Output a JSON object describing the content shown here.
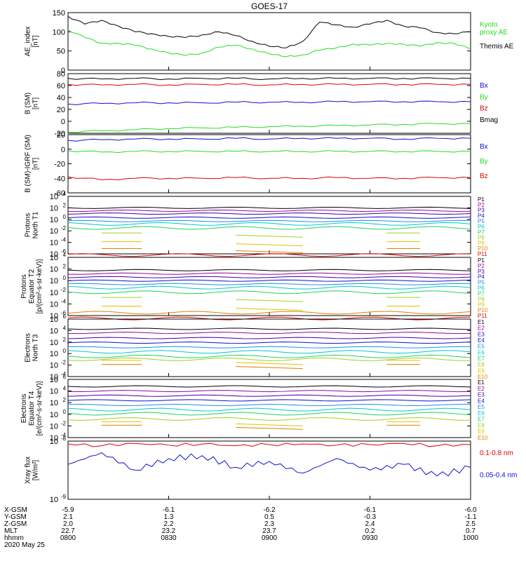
{
  "title": "GOES-17",
  "date_label": "2020 May 25",
  "colors": {
    "black": "#000000",
    "red": "#e00000",
    "green": "#22dd22",
    "blue": "#1010d0",
    "P": [
      "#000000",
      "#a000a0",
      "#4000a0",
      "#1010d0",
      "#2090e0",
      "#00c8c8",
      "#20d060",
      "#a0d020",
      "#e0c000",
      "#e08000",
      "#e00000"
    ],
    "E": [
      "#000000",
      "#a000a0",
      "#4000a0",
      "#1010d0",
      "#2090e0",
      "#00c8c8",
      "#20d060",
      "#a0d020",
      "#e0c000",
      "#e08000",
      "#e00000"
    ]
  },
  "x_rows": {
    "labels": [
      "X-GSM",
      "Y-GSM",
      "Z-GSM",
      "MLT",
      "hhmm"
    ],
    "values": [
      [
        "-5.9",
        "-6.1",
        "-6.2",
        "-6.1",
        "-6.0"
      ],
      [
        "2.1",
        "1.3",
        "0.5",
        "-0.3",
        "-1.1"
      ],
      [
        "2.0",
        "2.2",
        "2.3",
        "2.4",
        "2.5"
      ],
      [
        "22.7",
        "23.2",
        "23.7",
        "0.2",
        "0.7"
      ],
      [
        "0800",
        "0830",
        "0900",
        "0930",
        "1000"
      ]
    ]
  },
  "chart_data": [
    {
      "type": "line",
      "ylabel": "AE_index\n[nT]",
      "ylim": [
        0,
        150
      ],
      "yticks": [
        0,
        50,
        100,
        150
      ],
      "x": [
        0,
        5,
        10,
        15,
        20,
        25,
        30,
        35,
        40,
        45,
        50,
        55,
        60,
        65,
        70,
        75,
        80,
        85,
        90,
        95,
        100,
        105,
        110,
        115,
        120
      ],
      "series": [
        {
          "name": "Kyoto proxy AE",
          "color": "green",
          "values": [
            105,
            85,
            70,
            70,
            65,
            55,
            45,
            38,
            45,
            60,
            65,
            55,
            42,
            35,
            40,
            52,
            58,
            68,
            65,
            70,
            68,
            62,
            72,
            70,
            55
          ]
        },
        {
          "name": "Themis AE",
          "color": "black",
          "values": [
            140,
            120,
            130,
            115,
            100,
            95,
            88,
            85,
            92,
            100,
            90,
            75,
            62,
            58,
            75,
            125,
            118,
            112,
            120,
            130,
            115,
            110,
            98,
            95,
            100
          ]
        }
      ]
    },
    {
      "type": "line",
      "ylabel": "B (SM)\n[nT]",
      "ylim": [
        -20,
        80
      ],
      "yticks": [
        -20,
        0,
        20,
        40,
        60,
        80
      ],
      "x": [
        0,
        10,
        20,
        30,
        40,
        50,
        60,
        70,
        80,
        90,
        100,
        110,
        120
      ],
      "series": [
        {
          "name": "Bx",
          "color": "blue",
          "values": [
            29,
            30,
            31,
            31,
            31,
            32,
            32,
            32,
            33,
            33,
            33,
            33,
            33
          ]
        },
        {
          "name": "By",
          "color": "green",
          "values": [
            -18,
            -16,
            -14,
            -12,
            -11,
            -10,
            -9,
            -8,
            -7,
            -6,
            -5,
            -4,
            -4
          ]
        },
        {
          "name": "Bz",
          "color": "red",
          "values": [
            62,
            61,
            62,
            61,
            62,
            62,
            61,
            62,
            62,
            62,
            62,
            62,
            62
          ]
        },
        {
          "name": "Bmag",
          "color": "black",
          "values": [
            72,
            71,
            72,
            71,
            72,
            72,
            71,
            72,
            72,
            72,
            72,
            72,
            72
          ]
        }
      ]
    },
    {
      "type": "line",
      "ylabel": "B (SM)-IGRF (SM)\n[nT]",
      "ylim": [
        -60,
        20
      ],
      "yticks": [
        -60,
        -40,
        -20,
        0,
        20
      ],
      "x": [
        0,
        10,
        20,
        30,
        40,
        50,
        60,
        70,
        80,
        90,
        100,
        110,
        120
      ],
      "series": [
        {
          "name": "Bx",
          "color": "blue",
          "values": [
            12,
            13,
            14,
            14,
            14,
            15,
            14,
            15,
            15,
            15,
            14,
            15,
            15
          ]
        },
        {
          "name": "By",
          "color": "green",
          "values": [
            -2,
            -4,
            -3,
            -3,
            -3,
            -3,
            -3,
            -3,
            -3,
            -3,
            -3,
            -3,
            -3
          ]
        },
        {
          "name": "Bz",
          "color": "red",
          "values": [
            -38,
            -42,
            -40,
            -40,
            -40,
            -39,
            -40,
            -40,
            -39,
            -40,
            -40,
            -39,
            -39
          ]
        }
      ]
    },
    {
      "type": "line",
      "ylabel": "Protons\nNorth T1",
      "ylim_exp": [
        -6,
        4
      ],
      "yscale": "log",
      "ytick_labels": [
        "10^-6",
        "10^-4",
        "10^-2",
        "10^0",
        "10^2",
        "10^4"
      ],
      "channels": [
        "P1",
        "P2",
        "P3",
        "P4",
        "P5",
        "P6",
        "P7",
        "P8",
        "P9",
        "P10",
        "P11"
      ],
      "levels_exp": [
        2.0,
        1.5,
        1.0,
        0.3,
        -0.3,
        -0.8,
        -1.5,
        -2.5,
        -4.0,
        -5.2,
        -6.2
      ],
      "gaps": {
        "P8": true,
        "P9": true,
        "P10": true
      }
    },
    {
      "type": "line",
      "ylabel": "Protons\nEquator T2\n[p/(cm²-s-sr-keV)]",
      "ylim_exp": [
        -6,
        4
      ],
      "yscale": "log",
      "ytick_labels": [
        "10^-6",
        "10^-4",
        "10^-2",
        "10^0",
        "10^2",
        "10^4"
      ],
      "channels": [
        "P1",
        "P2",
        "P3",
        "P4",
        "P5",
        "P6",
        "P7",
        "P8",
        "P9",
        "P10",
        "P11"
      ],
      "levels_exp": [
        1.8,
        1.2,
        0.6,
        0.0,
        -0.6,
        -1.2,
        -2.0,
        -3.0,
        -4.5,
        -5.5,
        -6.5
      ],
      "gaps": {
        "P8": true,
        "P9": true
      }
    },
    {
      "type": "line",
      "ylabel": "Electrons\nNorth T3",
      "ylim_exp": [
        -4,
        6
      ],
      "yscale": "log",
      "ytick_labels": [
        "10^-4",
        "10^-2",
        "10^0",
        "10^2",
        "10^4",
        "10^6"
      ],
      "channels": [
        "E1",
        "E2",
        "E3",
        "E4",
        "E5",
        "E6",
        "E7",
        "E8",
        "E9",
        "E10"
      ],
      "levels_exp": [
        4.3,
        3.6,
        2.7,
        1.9,
        1.1,
        0.3,
        -0.5,
        -1.0,
        -1.3,
        -2.0
      ],
      "gaps": {
        "E9": true,
        "E10": true
      }
    },
    {
      "type": "line",
      "ylabel": "Electrons\nEquator T4\n[e/(cm²-s-sr-keV)]",
      "ylim_exp": [
        -4,
        6
      ],
      "yscale": "log",
      "ytick_labels": [
        "10^-4",
        "10^-2",
        "10^0",
        "10^2",
        "10^4",
        "10^6"
      ],
      "channels": [
        "E1",
        "E2",
        "E3",
        "E4",
        "E5",
        "E6",
        "E7",
        "E8",
        "E9",
        "E10"
      ],
      "levels_exp": [
        4.8,
        4.0,
        3.2,
        2.4,
        1.6,
        0.8,
        0.1,
        -0.8,
        -1.4,
        -2.0
      ],
      "gaps": {
        "E9": true,
        "E10": true
      }
    },
    {
      "type": "line",
      "ylabel": "Xray flux\n[W/m²]",
      "yscale": "log",
      "ylim_exp": [
        -9,
        -8
      ],
      "ytick_labels": [
        "10^-9",
        "10^-8"
      ],
      "x": [
        0,
        10,
        20,
        30,
        40,
        50,
        60,
        70,
        80,
        90,
        100,
        110,
        120
      ],
      "series": [
        {
          "name": "0.1-0.8 nm",
          "color": "red",
          "values_exp": [
            -8.05,
            -8.08,
            -8.04,
            -8.07,
            -8.05,
            -8.08,
            -8.06,
            -8.05,
            -8.07,
            -8.06,
            -8.04,
            -8.08,
            -8.06
          ]
        },
        {
          "name": "0.05-0.4 nm",
          "color": "blue",
          "values_exp": [
            -8.4,
            -8.2,
            -8.5,
            -8.3,
            -8.25,
            -8.45,
            -8.35,
            -8.55,
            -8.3,
            -8.5,
            -8.4,
            -8.6,
            -8.45
          ]
        }
      ]
    }
  ],
  "legends": [
    [
      {
        "text": "Kyoto\nproxy AE",
        "color": "green"
      },
      {
        "text": "Themis AE",
        "color": "black"
      }
    ],
    [
      {
        "text": "Bx",
        "color": "blue"
      },
      {
        "text": "By",
        "color": "green"
      },
      {
        "text": "Bz",
        "color": "red"
      },
      {
        "text": "Bmag",
        "color": "black"
      }
    ],
    [
      {
        "text": "Bx",
        "color": "blue"
      },
      {
        "text": "By",
        "color": "green"
      },
      {
        "text": "Bz",
        "color": "red"
      }
    ],
    [],
    [],
    [],
    [],
    [
      {
        "text": "0.1-0.8 nm",
        "color": "red"
      },
      {
        "text": "0.05-0.4 nm",
        "color": "blue"
      }
    ]
  ]
}
